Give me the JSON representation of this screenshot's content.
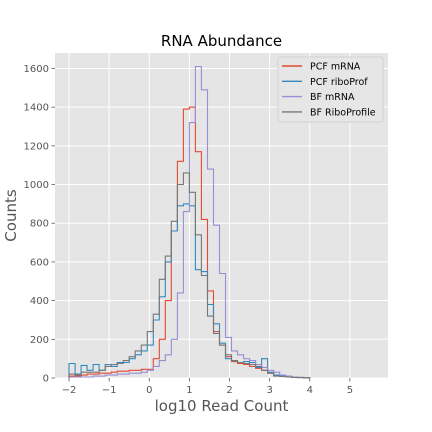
{
  "chart_data": {
    "type": "line",
    "style": "step-histogram",
    "title": "RNA Abundance",
    "xlabel": "log10 Read Count",
    "ylabel": "Counts",
    "xlim": [
      -2.35,
      5.95
    ],
    "ylim": [
      0,
      1680
    ],
    "xticks": [
      -2,
      -1,
      0,
      1,
      2,
      3,
      4,
      5
    ],
    "xtick_labels": [
      "−2",
      "−1",
      "0",
      "1",
      "2",
      "3",
      "4",
      "5"
    ],
    "yticks": [
      0,
      200,
      400,
      600,
      800,
      1000,
      1200,
      1400,
      1600
    ],
    "grid": true,
    "background": "#e5e5e5",
    "legend_position": "top-right",
    "bin_edges": [
      -2.0,
      -1.85,
      -1.7,
      -1.55,
      -1.4,
      -1.25,
      -1.1,
      -0.95,
      -0.8,
      -0.65,
      -0.5,
      -0.35,
      -0.2,
      -0.05,
      0.1,
      0.25,
      0.4,
      0.55,
      0.7,
      0.85,
      1.0,
      1.15,
      1.3,
      1.45,
      1.6,
      1.75,
      1.9,
      2.05,
      2.2,
      2.35,
      2.5,
      2.65,
      2.8,
      2.95,
      3.1,
      3.25,
      3.4,
      3.55,
      3.7,
      3.85,
      4.0
    ],
    "series": [
      {
        "name": "PCF mRNA",
        "color": "#e24a33",
        "values": [
          10,
          10,
          15,
          20,
          20,
          25,
          25,
          30,
          35,
          35,
          40,
          40,
          45,
          45,
          100,
          200,
          400,
          760,
          1120,
          1390,
          1400,
          1170,
          820,
          450,
          240,
          170,
          110,
          85,
          75,
          70,
          60,
          50,
          40,
          25,
          15,
          10,
          8,
          5,
          3,
          2
        ]
      },
      {
        "name": "PCF riboProf",
        "color": "#348abd",
        "values": [
          75,
          20,
          65,
          40,
          70,
          40,
          70,
          60,
          80,
          80,
          100,
          120,
          140,
          170,
          300,
          420,
          600,
          760,
          890,
          900,
          890,
          560,
          550,
          380,
          280,
          180,
          100,
          90,
          80,
          85,
          80,
          55,
          100,
          30,
          15,
          10,
          5,
          3,
          2,
          1
        ]
      },
      {
        "name": "BF mRNA",
        "color": "#988ed5",
        "values": [
          5,
          5,
          5,
          5,
          10,
          10,
          15,
          15,
          20,
          20,
          25,
          25,
          30,
          40,
          60,
          90,
          120,
          200,
          440,
          860,
          1320,
          1610,
          1490,
          1080,
          790,
          540,
          210,
          140,
          120,
          100,
          90,
          70,
          55,
          40,
          30,
          15,
          10,
          5,
          3,
          2
        ]
      },
      {
        "name": "BF RiboProfile",
        "color": "#777777",
        "values": [
          20,
          15,
          30,
          30,
          30,
          40,
          60,
          70,
          75,
          90,
          110,
          140,
          170,
          240,
          330,
          510,
          630,
          810,
          1000,
          1060,
          960,
          740,
          530,
          320,
          230,
          170,
          120,
          90,
          80,
          75,
          70,
          60,
          40,
          25,
          10,
          8,
          5,
          3,
          2,
          1
        ]
      }
    ]
  }
}
